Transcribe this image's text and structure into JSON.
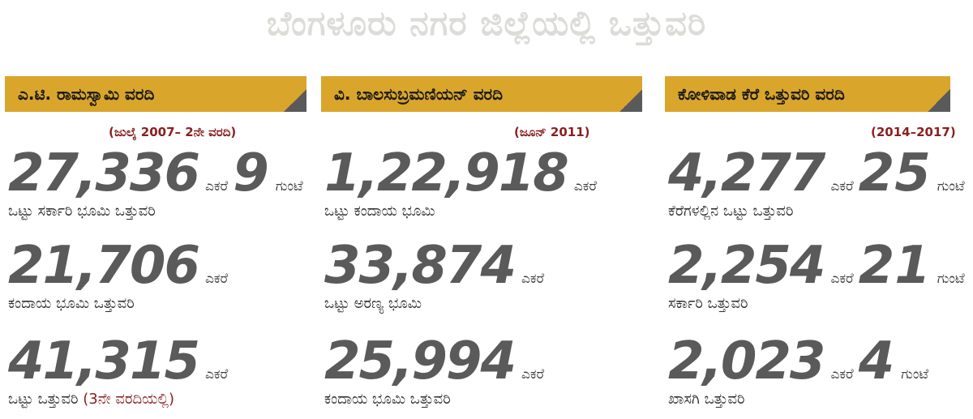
{
  "title": "ಬೆಂಗಳೂರು ನಗರ ಜಿಲ್ಲೆಯಲ್ಲಿ ಒತ್ತುವರಿ",
  "columns": [
    {
      "header": "ಎ.ಟಿ. ರಾಮಸ್ವಾಮಿ ವರದಿ",
      "period": "(ಜುಲೈ 2007– 2ನೇ ವರದಿ)",
      "stats": [
        {
          "value": "27,336",
          "unit": "ಎಕರೆ",
          "value2": "9",
          "unit2": "ಗುಂಟೆ",
          "caption": "ಒಟ್ಟು ಸರ್ಕಾರಿ ಭೂಮಿ ಒತ್ತುವರಿ",
          "caption_note": ""
        },
        {
          "value": "21,706",
          "unit": "ಎಕರೆ",
          "value2": "",
          "unit2": "",
          "caption": "ಕಂದಾಯ ಭೂಮಿ ಒತ್ತುವರಿ",
          "caption_note": ""
        },
        {
          "value": "41,315",
          "unit": "ಎಕರೆ",
          "value2": "",
          "unit2": "",
          "caption": "ಒಟ್ಟು ಒತ್ತುವರಿ",
          "caption_note": "(3ನೇ ವರದಿಯಲ್ಲಿ)"
        }
      ]
    },
    {
      "header": "ವಿ. ಬಾಲಸುಬ್ರಮಣಿಯನ್ ವರದಿ",
      "period": "(ಜೂನ್ 2011)",
      "stats": [
        {
          "value": "1,22,918",
          "unit": "ಎಕರೆ",
          "value2": "",
          "unit2": "",
          "caption": "ಒಟ್ಟು ಕಂದಾಯ ಭೂಮಿ",
          "caption_note": ""
        },
        {
          "value": "33,874",
          "unit": "ಎಕರೆ",
          "value2": "",
          "unit2": "",
          "caption": "ಒಟ್ಟು ಅರಣ್ಯ ಭೂಮಿ",
          "caption_note": ""
        },
        {
          "value": "25,994",
          "unit": "ಎಕರೆ",
          "value2": "",
          "unit2": "",
          "caption": "ಕಂದಾಯ ಭೂಮಿ ಒತ್ತುವರಿ",
          "caption_note": ""
        }
      ]
    },
    {
      "header": "ಕೋಳಿವಾಡ ಕೆರೆ ಒತ್ತುವರಿ ವರದಿ",
      "period": "(2014–2017)",
      "stats": [
        {
          "value": "4,277",
          "unit": "ಎಕರೆ",
          "value2": "25",
          "unit2": "ಗುಂಟೆ",
          "caption": "ಕೆರೆಗಳಲ್ಲಿನ ಒಟ್ಟು ಒತ್ತುವರಿ",
          "caption_note": ""
        },
        {
          "value": "2,254",
          "unit": "ಎಕರೆ",
          "value2": "21",
          "unit2": "ಗುಂಟೆ",
          "caption": "ಸರ್ಕಾರಿ ಒತ್ತುವರಿ",
          "caption_note": ""
        },
        {
          "value": "2,023",
          "unit": "ಎಕರೆ",
          "value2": "4",
          "unit2": "ಗುಂಟೆ",
          "caption": "ಖಾಸಗಿ ಒತ್ತುವರಿ",
          "caption_note": ""
        }
      ]
    }
  ]
}
